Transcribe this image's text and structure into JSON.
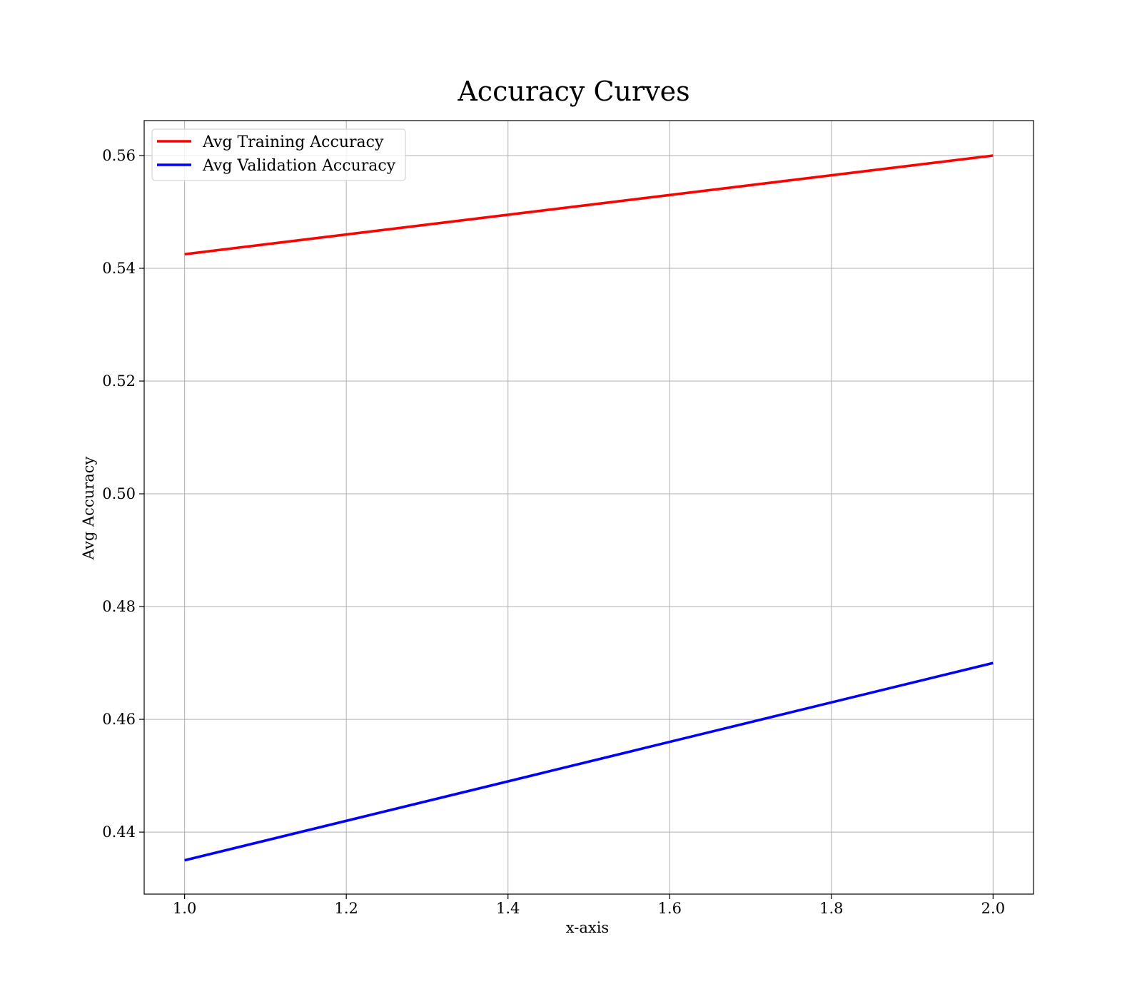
{
  "chart_data": {
    "type": "line",
    "title": "Accuracy Curves",
    "xlabel": "x-axis",
    "ylabel": "Avg Accuracy",
    "x": [
      1.0,
      2.0
    ],
    "xlim": [
      0.95,
      2.05
    ],
    "ylim": [
      0.429,
      0.5662
    ],
    "xticks": [
      1.0,
      1.2,
      1.4,
      1.6,
      1.8,
      2.0
    ],
    "xtick_labels": [
      "1.0",
      "1.2",
      "1.4",
      "1.6",
      "1.8",
      "2.0"
    ],
    "yticks": [
      0.44,
      0.46,
      0.48,
      0.5,
      0.52,
      0.54,
      0.56
    ],
    "ytick_labels": [
      "0.44",
      "0.46",
      "0.48",
      "0.50",
      "0.52",
      "0.54",
      "0.56"
    ],
    "grid": true,
    "legend_position": "top-left",
    "series": [
      {
        "name": "Avg Training Accuracy",
        "values": [
          0.5425,
          0.56
        ],
        "color": "#ff0000"
      },
      {
        "name": "Avg Validation Accuracy",
        "values": [
          0.435,
          0.47
        ],
        "color": "#0000ff"
      }
    ],
    "grid_color": "#b0b0b0",
    "axis_color": "#000000"
  }
}
